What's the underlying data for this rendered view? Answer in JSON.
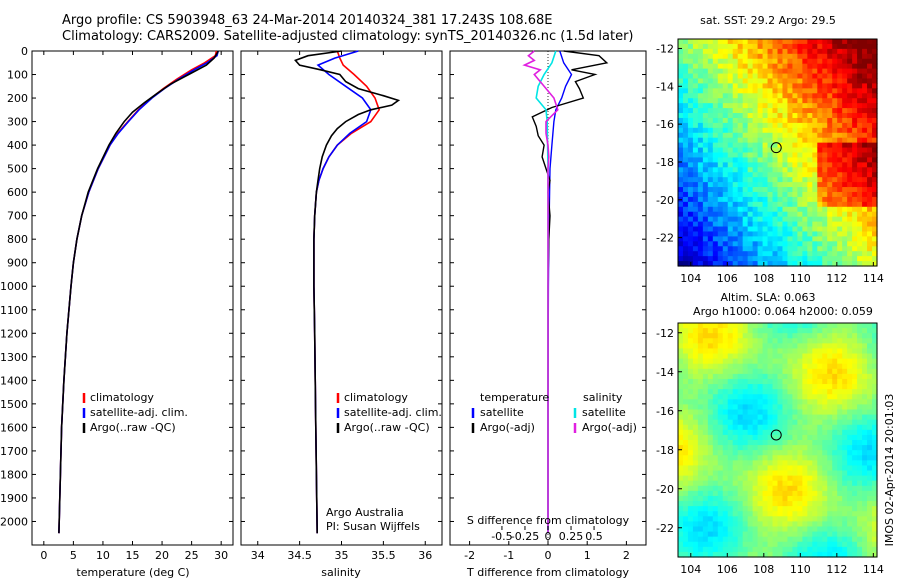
{
  "header": {
    "line1": "Argo profile: CS 5903948_63 24-Mar-2014 20140324_381 17.243S 108.68E",
    "line2": "Climatology: CARS2009. Satellite-adjusted climatology: synTS_20140326.nc (1.5d later)"
  },
  "colors": {
    "climatology": "#ff0000",
    "satellite": "#0000ff",
    "argo": "#000000",
    "satellite_sal_diff": "#00e5e5",
    "argo_sal_diff": "#e020e0"
  },
  "chart_data": [
    {
      "type": "line",
      "name": "temperature-profile",
      "xlabel": "temperature (deg C)",
      "ylabel": "",
      "xlim": [
        -2,
        32
      ],
      "ylim": [
        2100,
        0
      ],
      "xticks": [
        0,
        5,
        10,
        15,
        20,
        25,
        30
      ],
      "yticks": [
        0,
        100,
        200,
        300,
        400,
        500,
        600,
        700,
        800,
        900,
        1000,
        1100,
        1200,
        1300,
        1400,
        1500,
        1600,
        1700,
        1800,
        1900,
        2000
      ],
      "legend": [
        "climatology",
        "satellite-adj. clim.",
        "Argo(..raw -QC)"
      ],
      "series": [
        {
          "name": "climatology",
          "depth": [
            0,
            20,
            50,
            80,
            120,
            160,
            200,
            250,
            300,
            350,
            400,
            500,
            600,
            700,
            800,
            900,
            1000,
            1200,
            1400,
            1600,
            1800,
            2000,
            2050
          ],
          "values": [
            29.2,
            29.0,
            27.2,
            25.0,
            22.5,
            20.2,
            18.2,
            16.0,
            14.2,
            12.5,
            11.2,
            9.2,
            7.6,
            6.4,
            5.6,
            5.0,
            4.6,
            3.9,
            3.4,
            3.0,
            2.8,
            2.6,
            2.55
          ]
        },
        {
          "name": "satellite-adj. clim.",
          "depth": [
            0,
            20,
            50,
            80,
            120,
            160,
            200,
            250,
            300,
            350,
            400,
            500,
            600,
            700,
            800,
            900,
            1000,
            1200,
            1400,
            1600,
            1800,
            2000,
            2050
          ],
          "values": [
            29.5,
            29.3,
            27.6,
            25.4,
            22.8,
            20.4,
            18.3,
            16.1,
            14.3,
            12.6,
            11.2,
            9.2,
            7.6,
            6.4,
            5.6,
            5.0,
            4.6,
            3.9,
            3.4,
            3.0,
            2.8,
            2.6,
            2.55
          ]
        },
        {
          "name": "Argo(..raw -QC)",
          "depth": [
            0,
            10,
            30,
            60,
            100,
            140,
            180,
            220,
            260,
            300,
            350,
            400,
            500,
            600,
            700,
            800,
            900,
            1000,
            1200,
            1400,
            1600,
            1800,
            2000,
            2050
          ],
          "values": [
            29.5,
            29.3,
            28.8,
            27.5,
            24.5,
            21.5,
            19.2,
            17.0,
            15.0,
            13.6,
            12.2,
            11.0,
            9.1,
            7.5,
            6.4,
            5.6,
            5.0,
            4.6,
            3.9,
            3.4,
            3.0,
            2.8,
            2.6,
            2.55
          ]
        }
      ]
    },
    {
      "type": "line",
      "name": "salinity-profile",
      "xlabel": "salinity",
      "xlim": [
        33.8,
        36.2
      ],
      "ylim": [
        2100,
        0
      ],
      "xticks": [
        34,
        34.5,
        35,
        35.5,
        36
      ],
      "xticklabels": [
        "34",
        "34.5",
        "35",
        "35.5",
        "36"
      ],
      "legend": [
        "climatology",
        "satellite-adj. clim.",
        "Argo(..raw -QC)"
      ],
      "annotation": [
        "Argo Australia",
        "PI: Susan Wijffels"
      ],
      "series": [
        {
          "name": "climatology",
          "depth": [
            0,
            30,
            60,
            100,
            150,
            200,
            250,
            300,
            350,
            400,
            450,
            500,
            550,
            600,
            700,
            800,
            1000,
            1200,
            1500,
            1800,
            2050
          ],
          "values": [
            34.95,
            34.98,
            35.02,
            35.15,
            35.3,
            35.4,
            35.45,
            35.35,
            35.12,
            34.95,
            34.85,
            34.78,
            34.73,
            34.7,
            34.68,
            34.67,
            34.67,
            34.68,
            34.69,
            34.7,
            34.71
          ]
        },
        {
          "name": "satellite-adj. clim.",
          "depth": [
            0,
            30,
            60,
            100,
            150,
            200,
            250,
            300,
            350,
            400,
            450,
            500,
            550,
            600,
            700,
            800,
            1000,
            1200,
            1500,
            1800,
            2050
          ],
          "values": [
            35.2,
            34.92,
            34.72,
            34.85,
            35.05,
            35.25,
            35.35,
            35.3,
            35.1,
            34.95,
            34.85,
            34.78,
            34.73,
            34.7,
            34.68,
            34.67,
            34.67,
            34.68,
            34.69,
            34.7,
            34.71
          ]
        },
        {
          "name": "Argo(..raw -QC)",
          "depth": [
            0,
            20,
            40,
            60,
            80,
            100,
            130,
            160,
            190,
            210,
            230,
            250,
            270,
            300,
            330,
            360,
            400,
            450,
            500,
            550,
            600,
            700,
            800,
            1000,
            1200,
            1500,
            1800,
            2050
          ],
          "values": [
            35.0,
            34.6,
            34.45,
            34.5,
            34.75,
            34.98,
            35.05,
            35.2,
            35.5,
            35.68,
            35.6,
            35.35,
            35.2,
            35.05,
            34.95,
            34.88,
            34.82,
            34.77,
            34.74,
            34.72,
            34.7,
            34.68,
            34.67,
            34.67,
            34.68,
            34.69,
            34.7,
            34.71
          ]
        }
      ]
    },
    {
      "type": "line",
      "name": "difference-profile",
      "xlabel": "T difference from climatology",
      "xlabel_top": "S difference from climatology",
      "xlim": [
        -2.5,
        2.5
      ],
      "ylim": [
        2100,
        0
      ],
      "xticks": [
        -2,
        -1,
        0,
        1,
        2
      ],
      "top_ticks": [
        -0.5,
        -0.25,
        0,
        0.25,
        0.5
      ],
      "top_ticklabels": [
        "-0.5",
        "-0.25",
        "0",
        "0.25",
        "0.5"
      ],
      "legend_left": {
        "title": "temperature",
        "items": [
          "satellite",
          "Argo(-adj)"
        ]
      },
      "legend_right": {
        "title": "salinity",
        "items": [
          "satellite",
          "Argo(-adj)"
        ]
      },
      "series": [
        {
          "name": "temperature satellite",
          "depth": [
            0,
            50,
            100,
            150,
            200,
            250,
            300,
            400,
            500,
            600,
            800,
            1000,
            1500,
            2050
          ],
          "values": [
            0.3,
            0.4,
            0.6,
            0.45,
            0.35,
            0.2,
            0.15,
            0.1,
            0.05,
            0.04,
            0.02,
            0.01,
            0.0,
            0.0
          ]
        },
        {
          "name": "temperature Argo(-adj)",
          "depth": [
            0,
            20,
            50,
            80,
            100,
            130,
            160,
            200,
            240,
            280,
            320,
            360,
            400,
            450,
            500,
            550,
            600,
            700,
            800,
            900,
            1000,
            1200,
            1500,
            1800,
            2050
          ],
          "values": [
            0.4,
            1.3,
            1.5,
            0.6,
            1.2,
            0.7,
            0.8,
            0.9,
            0.1,
            -0.4,
            -0.3,
            -0.25,
            -0.1,
            -0.15,
            -0.05,
            0.05,
            0.0,
            0.05,
            0.02,
            0.01,
            0.0,
            0.0,
            0.0,
            0.0,
            0.0
          ]
        },
        {
          "name": "salinity satellite",
          "depth": [
            0,
            50,
            100,
            150,
            200,
            250,
            300,
            400,
            500,
            600,
            800,
            1000,
            1500,
            2050
          ],
          "values": [
            0.2,
            0.1,
            -0.1,
            -0.25,
            -0.3,
            -0.05,
            -0.02,
            -0.01,
            0.0,
            0.0,
            0.0,
            0.0,
            0.0,
            0.0
          ]
        },
        {
          "name": "salinity Argo(-adj)",
          "depth": [
            0,
            20,
            40,
            60,
            80,
            100,
            150,
            200,
            250,
            300,
            350,
            400,
            450,
            500,
            600,
            800,
            1000,
            1500,
            2050
          ],
          "values": [
            -0.35,
            -0.5,
            -0.35,
            -0.6,
            -0.2,
            -0.35,
            -0.1,
            0.15,
            0.25,
            -0.05,
            -0.05,
            0.0,
            0.02,
            0.0,
            0.0,
            0.0,
            0.0,
            0.0,
            0.0
          ]
        }
      ]
    },
    {
      "type": "heatmap",
      "name": "sst-map",
      "title": "sat. SST: 29.2 Argo: 29.5",
      "xlim": [
        103.3,
        114.2
      ],
      "ylim": [
        -23.5,
        -11.5
      ],
      "xticks": [
        104,
        106,
        108,
        110,
        112,
        114
      ],
      "yticks": [
        -12,
        -14,
        -16,
        -18,
        -20,
        -22
      ],
      "marker": {
        "lon": 108.68,
        "lat": -17.243
      }
    },
    {
      "type": "heatmap",
      "name": "sla-map",
      "title_line1": "Altim. SLA: 0.063",
      "title_line2": "Argo h1000: 0.064 h2000: 0.059",
      "xlim": [
        103.3,
        114.2
      ],
      "ylim": [
        -23.5,
        -11.5
      ],
      "xticks": [
        104,
        106,
        108,
        110,
        112,
        114
      ],
      "yticks": [
        -12,
        -14,
        -16,
        -18,
        -20,
        -22
      ],
      "marker": {
        "lon": 108.68,
        "lat": -17.243
      }
    }
  ],
  "footer": {
    "credit": "IMOS 02-Apr-2014 20:01:03"
  }
}
